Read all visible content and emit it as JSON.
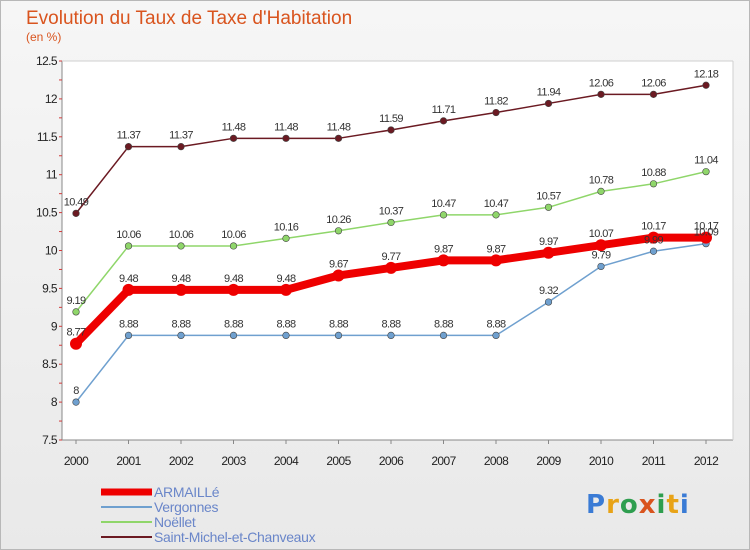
{
  "logo": {
    "letters": [
      {
        "ch": "P",
        "color": "#3a7bd5"
      },
      {
        "ch": "r",
        "color": "#e8a317"
      },
      {
        "ch": "o",
        "color": "#2e9e4f"
      },
      {
        "ch": "x",
        "color": "#d9541e"
      },
      {
        "ch": "i",
        "color": "#2e9e4f"
      },
      {
        "ch": "t",
        "color": "#e8a317"
      },
      {
        "ch": "i",
        "color": "#3a7bd5"
      }
    ]
  },
  "chart_data": {
    "type": "line",
    "title": "Evolution du Taux de Taxe d'Habitation",
    "subtitle": "(en %)",
    "x": [
      "2000",
      "2001",
      "2002",
      "2003",
      "2004",
      "2005",
      "2006",
      "2007",
      "2008",
      "2009",
      "2010",
      "2011",
      "2012"
    ],
    "ylim": [
      7.5,
      12.5
    ],
    "yticks": [
      "7.5",
      "8",
      "8.5",
      "9",
      "9.5",
      "10",
      "10.5",
      "11",
      "11.5",
      "12",
      "12.5"
    ],
    "grid": false,
    "legend_position": "bottom-left",
    "series": [
      {
        "name": "Saint-Michel-et-Chanveaux",
        "color": "#6b1a22",
        "width": 1.5,
        "values": [
          10.49,
          11.37,
          11.37,
          11.48,
          11.48,
          11.48,
          11.59,
          11.71,
          11.82,
          11.94,
          12.06,
          12.06,
          12.18
        ],
        "labels": [
          "10.49",
          "11.37",
          "11.37",
          "11.48",
          "11.48",
          "11.48",
          "11.59",
          "11.71",
          "11.82",
          "11.94",
          "12.06",
          "12.06",
          "12.18"
        ]
      },
      {
        "name": "Noëllet",
        "color": "#8fd66a",
        "width": 1.5,
        "values": [
          9.19,
          10.06,
          10.06,
          10.06,
          10.16,
          10.26,
          10.37,
          10.47,
          10.47,
          10.57,
          10.78,
          10.88,
          11.04
        ],
        "labels": [
          "9.19",
          "10.06",
          "10.06",
          "10.06",
          "10.16",
          "10.26",
          "10.37",
          "10.47",
          "10.47",
          "10.57",
          "10.78",
          "10.88",
          "11.04"
        ]
      },
      {
        "name": "Vergonnes",
        "color": "#6fa0cf",
        "width": 1.5,
        "values": [
          8,
          8.88,
          8.88,
          8.88,
          8.88,
          8.88,
          8.88,
          8.88,
          8.88,
          9.32,
          9.79,
          9.99,
          10.09
        ],
        "labels": [
          "8",
          "8.88",
          "8.88",
          "8.88",
          "8.88",
          "8.88",
          "8.88",
          "8.88",
          "8.88",
          "9.32",
          "9.79",
          "9.99",
          "10.09"
        ]
      },
      {
        "name": "ARMAILLé",
        "color": "#ee0000",
        "width": 8,
        "values": [
          8.77,
          9.48,
          9.48,
          9.48,
          9.48,
          9.67,
          9.77,
          9.87,
          9.87,
          9.97,
          10.07,
          10.17,
          10.17
        ],
        "labels": [
          "8.77",
          "9.48",
          "9.48",
          "9.48",
          "9.48",
          "9.67",
          "9.77",
          "9.87",
          "9.87",
          "9.97",
          "10.07",
          "10.17",
          "10.17"
        ]
      }
    ],
    "legend_order": [
      "ARMAILLé",
      "Vergonnes",
      "Noëllet",
      "Saint-Michel-et-Chanveaux"
    ]
  }
}
